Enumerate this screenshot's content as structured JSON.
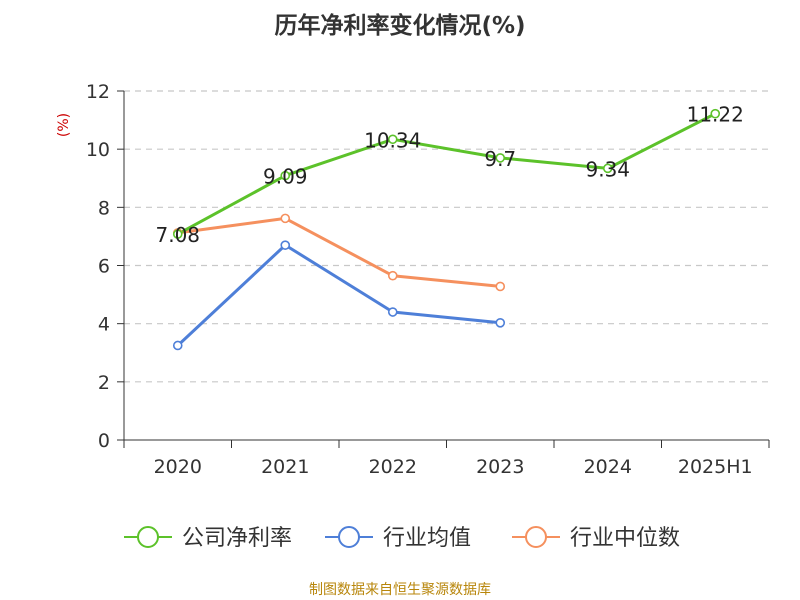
{
  "chart_data": {
    "type": "line",
    "title": "历年净利率变化情况(%)",
    "ylabel": "(%)",
    "ylim": [
      0,
      12
    ],
    "yticks": [
      0,
      2,
      4,
      6,
      8,
      10,
      12
    ],
    "grid": true,
    "legend": "bottom",
    "categories": [
      "2020",
      "2021",
      "2022",
      "2023",
      "2024",
      "2025H1"
    ],
    "series": [
      {
        "name": "公司净利率",
        "color": "#5cc22a",
        "values": [
          7.08,
          9.09,
          10.34,
          9.7,
          9.34,
          11.22
        ],
        "labels": [
          "7.08",
          "9.09",
          "10.34",
          "9.7",
          "9.34",
          "11.22"
        ]
      },
      {
        "name": "行业均值",
        "color": "#4e7fd8",
        "values": [
          3.25,
          6.7,
          4.4,
          4.03,
          null,
          null
        ]
      },
      {
        "name": "行业中位数",
        "color": "#f5905e",
        "values": [
          7.12,
          7.62,
          5.65,
          5.28,
          null,
          null
        ]
      }
    ],
    "source": "制图数据来自恒生聚源数据库"
  }
}
